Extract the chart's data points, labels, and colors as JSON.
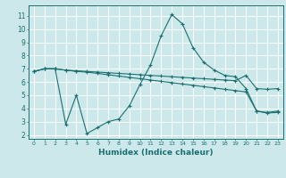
{
  "xlabel": "Humidex (Indice chaleur)",
  "ylabel": "",
  "bg_color": "#cce8eb",
  "grid_color": "#ffffff",
  "line_color": "#1a7070",
  "xlim": [
    -0.5,
    23.5
  ],
  "ylim": [
    1.7,
    11.8
  ],
  "yticks": [
    2,
    3,
    4,
    5,
    6,
    7,
    8,
    9,
    10,
    11
  ],
  "xticks": [
    0,
    1,
    2,
    3,
    4,
    5,
    6,
    7,
    8,
    9,
    10,
    11,
    12,
    13,
    14,
    15,
    16,
    17,
    18,
    19,
    20,
    21,
    22,
    23
  ],
  "line1_x": [
    0,
    1,
    2,
    3,
    4,
    5,
    6,
    7,
    8,
    9,
    10,
    11,
    12,
    13,
    14,
    15,
    16,
    17,
    18,
    19,
    20,
    21,
    22,
    23
  ],
  "line1_y": [
    6.8,
    7.0,
    7.0,
    6.9,
    6.85,
    6.8,
    6.75,
    6.7,
    6.65,
    6.6,
    6.55,
    6.5,
    6.45,
    6.4,
    6.35,
    6.3,
    6.25,
    6.2,
    6.15,
    6.1,
    6.5,
    5.5,
    5.45,
    5.5
  ],
  "line2_x": [
    0,
    1,
    2,
    3,
    4,
    5,
    6,
    7,
    8,
    9,
    10,
    11,
    12,
    13,
    14,
    15,
    16,
    17,
    18,
    19,
    20,
    21,
    22,
    23
  ],
  "line2_y": [
    6.8,
    7.0,
    7.0,
    6.9,
    6.8,
    6.75,
    6.65,
    6.55,
    6.45,
    6.35,
    6.25,
    6.15,
    6.05,
    5.95,
    5.85,
    5.75,
    5.65,
    5.55,
    5.45,
    5.35,
    5.25,
    3.8,
    3.65,
    3.7
  ],
  "line3_x": [
    0,
    1,
    2,
    3,
    4,
    5,
    6,
    7,
    8,
    9,
    10,
    11,
    12,
    13,
    14,
    15,
    16,
    17,
    18,
    19,
    20,
    21,
    22,
    23
  ],
  "line3_y": [
    6.8,
    7.0,
    7.0,
    2.8,
    5.0,
    2.1,
    2.55,
    3.0,
    3.2,
    4.2,
    5.8,
    7.3,
    9.5,
    11.1,
    10.4,
    8.6,
    7.5,
    6.9,
    6.5,
    6.4,
    5.5,
    3.8,
    3.7,
    3.8
  ]
}
